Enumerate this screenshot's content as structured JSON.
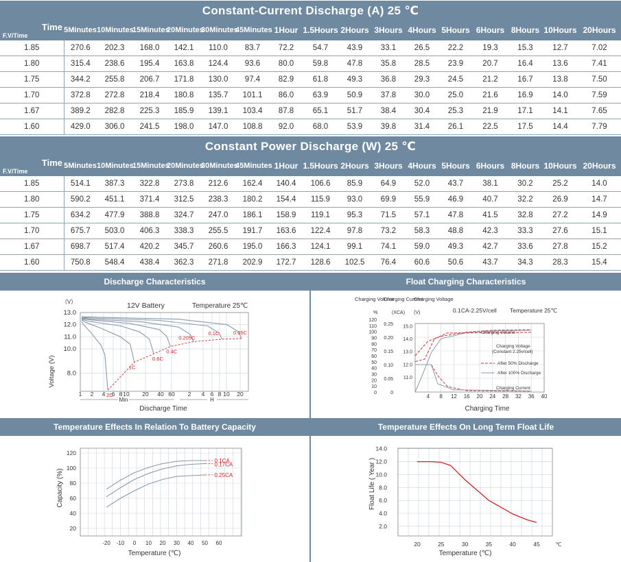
{
  "current_table": {
    "title": "Constant-Current Discharge (A) 25 ℃",
    "corner_time": "Time",
    "corner_fv": "F.V/Time",
    "columns": [
      "5Minutes",
      "10Minutes",
      "15Minutes",
      "20Minutes",
      "30Minutes",
      "45Minutes",
      "1Hour",
      "1.5Hours",
      "2Hours",
      "3Hours",
      "4Hours",
      "5Hours",
      "6Hours",
      "8Hours",
      "10Hours",
      "20Hours"
    ],
    "rows": [
      {
        "fv": "1.85",
        "values": [
          "270.6",
          "202.3",
          "168.0",
          "142.1",
          "110.0",
          "83.7",
          "72.2",
          "54.7",
          "43.9",
          "33.1",
          "26.5",
          "22.2",
          "19.3",
          "15.3",
          "12.7",
          "7.02"
        ]
      },
      {
        "fv": "1.80",
        "values": [
          "315.4",
          "238.6",
          "195.4",
          "163.8",
          "124.4",
          "93.6",
          "80.0",
          "59.8",
          "47.8",
          "35.8",
          "28.5",
          "23.9",
          "20.7",
          "16.4",
          "13.6",
          "7.41"
        ]
      },
      {
        "fv": "1.75",
        "values": [
          "344.2",
          "255.8",
          "206.7",
          "171.8",
          "130.0",
          "97.4",
          "82.9",
          "61.8",
          "49.3",
          "36.8",
          "29.3",
          "24.5",
          "21.2",
          "16.7",
          "13.8",
          "7.50"
        ]
      },
      {
        "fv": "1.70",
        "values": [
          "372.8",
          "272.8",
          "218.4",
          "180.8",
          "135.7",
          "101.1",
          "86.0",
          "63.9",
          "50.9",
          "37.8",
          "30.0",
          "25.0",
          "21.6",
          "16.9",
          "14.0",
          "7.59"
        ]
      },
      {
        "fv": "1.67",
        "values": [
          "389.2",
          "282.8",
          "225.3",
          "185.9",
          "139.1",
          "103.4",
          "87.8",
          "65.1",
          "51.7",
          "38.4",
          "30.4",
          "25.3",
          "21.9",
          "17.1",
          "14.1",
          "7.65"
        ]
      },
      {
        "fv": "1.60",
        "values": [
          "429.0",
          "306.0",
          "241.5",
          "198.0",
          "147.0",
          "108.8",
          "92.0",
          "68.0",
          "53.9",
          "39.8",
          "31.4",
          "26.1",
          "22.5",
          "17.5",
          "14.4",
          "7.79"
        ]
      }
    ]
  },
  "power_table": {
    "title": "Constant  Power Discharge (W) 25 ℃",
    "corner_time": "Time",
    "corner_fv": "F.V/Time",
    "columns": [
      "5Minutes",
      "10Minutes",
      "15Minutes",
      "20Minutes",
      "30Minutes",
      "45Minutes",
      "1Hour",
      "1.5Hours",
      "2Hours",
      "3Hours",
      "4Hours",
      "5Hours",
      "6Hours",
      "8Hours",
      "10Hours",
      "20Hours"
    ],
    "rows": [
      {
        "fv": "1.85",
        "values": [
          "514.1",
          "387.3",
          "322.8",
          "273.8",
          "212.6",
          "162.4",
          "140.4",
          "106.6",
          "85.9",
          "64.9",
          "52.0",
          "43.7",
          "38.1",
          "30.2",
          "25.2",
          "14.0"
        ]
      },
      {
        "fv": "1.80",
        "values": [
          "590.2",
          "451.1",
          "371.4",
          "312.5",
          "238.3",
          "180.2",
          "154.4",
          "115.9",
          "93.0",
          "69.9",
          "55.9",
          "46.9",
          "40.7",
          "32.2",
          "26.9",
          "14.7"
        ]
      },
      {
        "fv": "1.75",
        "values": [
          "634.2",
          "477.9",
          "388.8",
          "324.7",
          "247.0",
          "186.1",
          "158.9",
          "119.1",
          "95.3",
          "71.5",
          "57.1",
          "47.8",
          "41.5",
          "32.8",
          "27.2",
          "14.9"
        ]
      },
      {
        "fv": "1.70",
        "values": [
          "675.7",
          "503.0",
          "406.3",
          "338.3",
          "255.5",
          "191.7",
          "163.6",
          "122.4",
          "97.8",
          "73.2",
          "58.3",
          "48.8",
          "42.3",
          "33.3",
          "27.6",
          "15.1"
        ]
      },
      {
        "fv": "1.67",
        "values": [
          "698.7",
          "517.4",
          "420.2",
          "345.7",
          "260.6",
          "195.0",
          "166.3",
          "124.1",
          "99.1",
          "74.1",
          "59.0",
          "49.3",
          "42.7",
          "33.6",
          "27.8",
          "15.2"
        ]
      },
      {
        "fv": "1.60",
        "values": [
          "750.8",
          "548.4",
          "438.4",
          "362.3",
          "271.8",
          "202.9",
          "172.7",
          "128.6",
          "102.5",
          "76.4",
          "60.6",
          "50.6",
          "43.7",
          "34.3",
          "28.3",
          "15.4"
        ]
      }
    ]
  },
  "panels": {
    "discharge": {
      "title": "Discharge Characteristics",
      "unit_v": "（V）",
      "battery": "12V Battery",
      "temperature": "Temperature  25℃",
      "ylabel": "Voltage (V)",
      "xlabel": "Discharge  Time",
      "x_min": "Min",
      "x_h": "H"
    },
    "float": {
      "title": "Float Charging Characteristics",
      "col_volume": "Charging Volume",
      "col_current": "Charging Current",
      "col_voltage": "Charging Voltage",
      "unit_pct": "%",
      "unit_xca": "(XCA)",
      "unit_v": "(V)",
      "condition": "0.1CA-2.25V/cell",
      "temperature": "Temperature  25℃",
      "lbl_volume": "Charging Volume",
      "lbl_voltage": "Charging Voltage (Constant  2.25v/cell)",
      "lbl_50": "After 50% Discharge",
      "lbl_100": "After 100% Discharge",
      "lbl_current": "Charging Current",
      "xlabel": "Charging  Time"
    },
    "temp_capacity": {
      "title": "Temperature Effects In Relation To Battery Capacity",
      "ylabel": "Capacity  (%)",
      "xlabel": "Temperature (℃)"
    },
    "float_life": {
      "title": "Temperature Effects On Long Term Float Life",
      "ylabel": "Float Life ( Year )",
      "xlabel": "Temperature (℃)",
      "x_unit": "℃"
    }
  },
  "chart_data": [
    {
      "type": "line",
      "title": "Discharge Characteristics",
      "ylabel": "Voltage (V)",
      "xlabel": "Discharge  Time",
      "ylim": [
        6.5,
        13.0
      ],
      "y_ticks": [
        "8.0",
        "10.0",
        "11.0",
        "12.0",
        "13.0"
      ],
      "x_ticks": [
        "1",
        "2",
        "4",
        "6",
        "8",
        "10",
        "20",
        "40",
        "60",
        "2",
        "4",
        "6",
        "8",
        "10",
        "20"
      ],
      "series": [
        {
          "name": "2C",
          "points": [
            [
              0,
              12.3
            ],
            [
              0.1,
              12.0
            ],
            [
              0.45,
              11.4
            ],
            [
              1.0,
              10.3
            ],
            [
              1.2,
              9.5
            ],
            [
              1.35,
              6.6
            ]
          ]
        },
        {
          "name": "1C",
          "points": [
            [
              0,
              12.4
            ],
            [
              0.2,
              12.2
            ],
            [
              1.0,
              11.7
            ],
            [
              2.0,
              11.0
            ],
            [
              2.5,
              10.4
            ],
            [
              2.72,
              8.9
            ]
          ]
        },
        {
          "name": "0.6C",
          "points": [
            [
              0,
              12.45
            ],
            [
              0.3,
              12.3
            ],
            [
              2.0,
              11.9
            ],
            [
              3.0,
              11.4
            ],
            [
              3.5,
              10.8
            ],
            [
              3.72,
              9.6
            ]
          ]
        },
        {
          "name": "0.4C",
          "points": [
            [
              0,
              12.5
            ],
            [
              0.4,
              12.4
            ],
            [
              2.5,
              12.1
            ],
            [
              4.0,
              11.6
            ],
            [
              4.4,
              11.0
            ],
            [
              4.58,
              10.2
            ]
          ]
        },
        {
          "name": "0.205C",
          "points": [
            [
              0,
              12.55
            ],
            [
              0.5,
              12.45
            ],
            [
              3.0,
              12.25
            ],
            [
              5.0,
              11.8
            ],
            [
              5.6,
              11.2
            ],
            [
              5.78,
              10.6
            ]
          ]
        },
        {
          "name": "0.1C",
          "points": [
            [
              0,
              12.6
            ],
            [
              0.5,
              12.55
            ],
            [
              4.0,
              12.35
            ],
            [
              6.5,
              11.9
            ],
            [
              7.1,
              11.3
            ],
            [
              7.24,
              10.8
            ]
          ]
        },
        {
          "name": "0.05C",
          "points": [
            [
              0,
              12.65
            ],
            [
              1.0,
              12.6
            ],
            [
              5.0,
              12.45
            ],
            [
              7.5,
              12.0
            ],
            [
              8.1,
              11.4
            ],
            [
              8.25,
              10.85
            ]
          ]
        }
      ]
    },
    {
      "type": "line",
      "title": "Float Charging Characteristics",
      "xlabel": "Charging  Time",
      "x_ticks": [
        "4",
        "8",
        "12",
        "16",
        "20",
        "24",
        "28",
        "32",
        "36",
        "40"
      ],
      "y_ticks_volume": [
        "0",
        "10",
        "20",
        "30",
        "40",
        "50",
        "60",
        "70",
        "80",
        "90",
        "100",
        "110",
        "120"
      ],
      "y_ticks_current": [
        "0",
        "0.05",
        "0.10",
        "0.15",
        "0.20",
        "0.25"
      ],
      "y_ticks_voltage": [
        "11.0",
        "12.0",
        "13.0",
        "14.0",
        "15.0"
      ],
      "series": [
        {
          "name": "After 50% Discharge",
          "points": [
            [
              0,
              60
            ],
            [
              4,
              84
            ],
            [
              8,
              92
            ],
            [
              16,
              99
            ],
            [
              24,
              102
            ],
            [
              36,
              103
            ]
          ]
        },
        {
          "name": "After 100% Discharge",
          "points": [
            [
              0,
              0
            ],
            [
              2,
              25
            ],
            [
              5,
              65
            ],
            [
              8,
              88
            ],
            [
              16,
              98
            ],
            [
              24,
              101
            ],
            [
              36,
              102
            ]
          ]
        },
        {
          "name": "Charging Voltage",
          "points": [
            [
              0,
              12.2
            ],
            [
              3,
              12.4
            ],
            [
              6,
              14.0
            ],
            [
              10,
              14.45
            ],
            [
              36,
              14.5
            ]
          ]
        },
        {
          "name": "Charging Current",
          "points": [
            [
              0,
              0.1
            ],
            [
              5,
              0.1
            ],
            [
              7,
              0.06
            ],
            [
              10,
              0.02
            ],
            [
              16,
              0.005
            ],
            [
              36,
              0.003
            ]
          ]
        }
      ]
    },
    {
      "type": "line",
      "title": "Temperature Effects In Relation To Battery Capacity",
      "xlabel": "Temperature (℃)",
      "ylabel": "Capacity  (%)",
      "x_ticks": [
        "-20",
        "-10",
        "0",
        "10",
        "20",
        "30",
        "40",
        "50",
        "60"
      ],
      "y_ticks": [
        "20",
        "40",
        "60",
        "80",
        "100",
        "120"
      ],
      "series": [
        {
          "name": "0.1CA",
          "points": [
            [
              -20,
              72
            ],
            [
              -10,
              84
            ],
            [
              0,
              94
            ],
            [
              10,
              101
            ],
            [
              20,
              106
            ],
            [
              30,
              109
            ],
            [
              40,
              110
            ],
            [
              50,
              110
            ]
          ]
        },
        {
          "name": "0.17CA",
          "points": [
            [
              -20,
              62
            ],
            [
              -10,
              74
            ],
            [
              0,
              85
            ],
            [
              10,
              93
            ],
            [
              20,
              99
            ],
            [
              30,
              103
            ],
            [
              40,
              105
            ],
            [
              50,
              106
            ]
          ]
        },
        {
          "name": "0.25CA",
          "points": [
            [
              -20,
              48
            ],
            [
              -10,
              60
            ],
            [
              0,
              70
            ],
            [
              10,
              79
            ],
            [
              20,
              85
            ],
            [
              30,
              89
            ],
            [
              40,
              90
            ],
            [
              50,
              91
            ]
          ]
        }
      ]
    },
    {
      "type": "line",
      "title": "Temperature Effects On Long Term Float Life",
      "xlabel": "Temperature (℃)",
      "ylabel": "Float Life ( Year )",
      "x_ticks": [
        "20",
        "25",
        "30",
        "35",
        "40",
        "45"
      ],
      "y_ticks": [
        "2.0",
        "4.0",
        "6.0",
        "8.0",
        "10.0",
        "12.0",
        "14.0"
      ],
      "ylim": [
        1.0,
        14.0
      ],
      "series": [
        {
          "name": "",
          "points": [
            [
              20,
              12.0
            ],
            [
              23,
              12.0
            ],
            [
              25,
              11.9
            ],
            [
              27,
              11.4
            ],
            [
              30,
              9.2
            ],
            [
              35,
              6.0
            ],
            [
              40,
              3.9
            ],
            [
              43,
              3.0
            ],
            [
              45,
              2.6
            ]
          ]
        }
      ]
    }
  ]
}
